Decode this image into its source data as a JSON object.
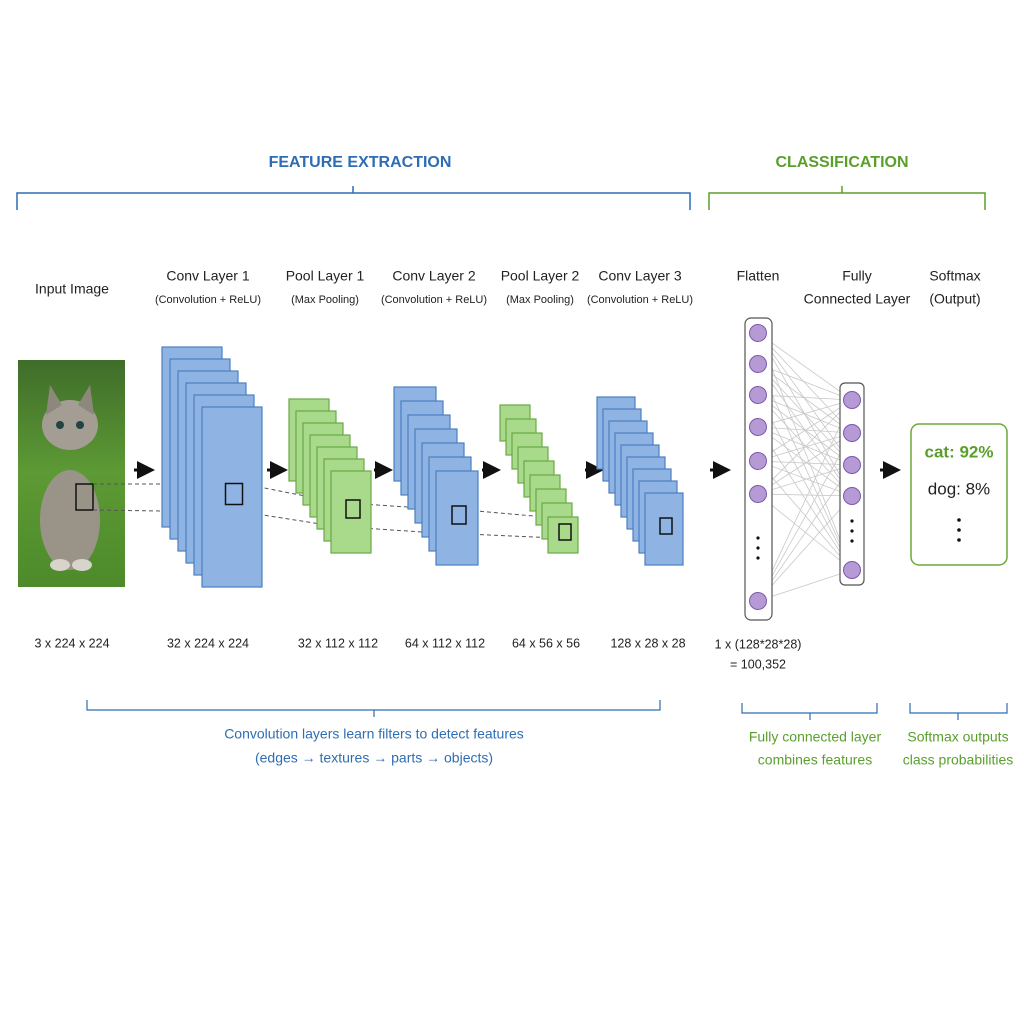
{
  "header": {
    "feature_extraction": "FEATURE EXTRACTION",
    "classification": "CLASSIFICATION"
  },
  "layers": [
    {
      "title": "Input Image",
      "shape": "3 x 224 x 224"
    },
    {
      "title": "Conv Layer 1",
      "subtitle": "(Convolution + ReLU)",
      "shape": "32 x 224 x 224"
    },
    {
      "title": "Pool Layer 1",
      "subtitle": "(Max Pooling)",
      "shape": "32 x 112 x 112"
    },
    {
      "title": "Conv Layer 2",
      "subtitle": "(Convolution + ReLU)",
      "shape": "64 x 112 x 112"
    },
    {
      "title": "Pool Layer 2",
      "subtitle": "(Max Pooling)",
      "shape": "64 x 56 x 56"
    },
    {
      "title": "Conv Layer 3",
      "subtitle": "(Convolution + ReLU)",
      "shape": "128 x 28 x 28"
    }
  ],
  "flatten": {
    "title": "Flatten",
    "shape": [
      "1 x (128*28*28)",
      "= 100,352"
    ]
  },
  "fully_connected": {
    "title": [
      "Fully",
      "Connected Layer"
    ]
  },
  "softmax": {
    "title": [
      "Softmax",
      "(Output)"
    ],
    "outputs": [
      "cat: 92%",
      "dog: 8%"
    ]
  },
  "notes": {
    "features": [
      "Convolution layers learn filters to detect features",
      "(edges → textures → parts → objects)"
    ],
    "fully_connected": [
      "Fully connected layer",
      "combines features"
    ],
    "softmax": [
      "Softmax outputs",
      "class probabilities"
    ]
  }
}
